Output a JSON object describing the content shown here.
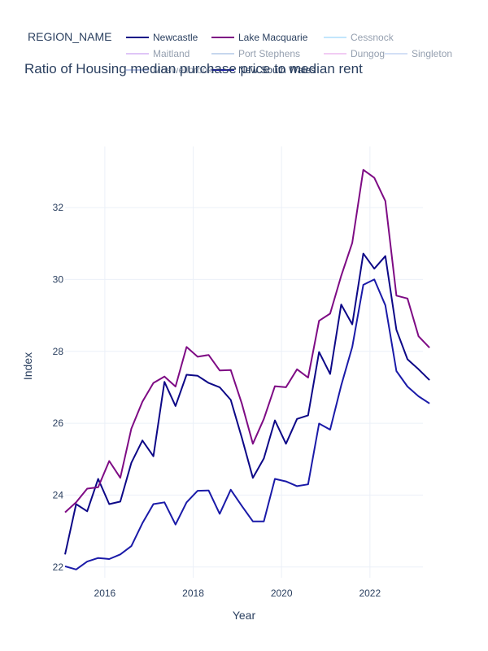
{
  "chart_data": {
    "type": "line",
    "title": "Ratio of Housing median purchase price to median rent",
    "xlabel": "Year",
    "ylabel": "Index",
    "xlim": [
      2015.1,
      2023.2
    ],
    "ylim": [
      21.7,
      33.7
    ],
    "x_ticks": [
      2016,
      2018,
      2020,
      2022
    ],
    "y_ticks": [
      22,
      24,
      26,
      28,
      30,
      32
    ],
    "grid": true,
    "legend": {
      "title": "REGION_NAME",
      "placement": "top",
      "entries": [
        {
          "name": "Newcastle",
          "color": "#0d0887",
          "visible": true
        },
        {
          "name": "Lake Macquarie",
          "color": "#7e0b84",
          "visible": true
        },
        {
          "name": "Cessnock",
          "color": "#87cefa",
          "visible": false
        },
        {
          "name": "Maitland",
          "color": "#c08cf0",
          "visible": false
        },
        {
          "name": "Port Stephens",
          "color": "#8fb1de",
          "visible": false
        },
        {
          "name": "Dungog",
          "color": "#e49be9",
          "visible": false
        },
        {
          "name": "Singleton",
          "color": "#a8c2ee",
          "visible": false
        },
        {
          "name": "Muswellbrook",
          "color": "#7a8fd4",
          "visible": false
        },
        {
          "name": "New South Wales",
          "color": "#1a1aa8",
          "visible": true
        }
      ]
    },
    "x": [
      2015.1,
      2015.35,
      2015.6,
      2015.85,
      2016.1,
      2016.35,
      2016.6,
      2016.85,
      2017.1,
      2017.35,
      2017.6,
      2017.85,
      2018.1,
      2018.35,
      2018.6,
      2018.85,
      2019.1,
      2019.35,
      2019.6,
      2019.85,
      2020.1,
      2020.35,
      2020.6,
      2020.85,
      2021.1,
      2021.35,
      2021.6,
      2021.85,
      2022.1,
      2022.35,
      2022.6,
      2022.85,
      2023.1,
      2023.35
    ],
    "series": [
      {
        "name": "Newcastle",
        "color": "#0d0887",
        "values": [
          22.35,
          23.75,
          23.55,
          24.45,
          23.75,
          23.82,
          24.9,
          25.52,
          25.08,
          27.15,
          26.48,
          27.35,
          27.32,
          27.12,
          27.0,
          26.65,
          25.6,
          24.48,
          25.02,
          26.08,
          25.43,
          26.12,
          26.22,
          27.98,
          27.37,
          29.3,
          28.75,
          30.72,
          30.3,
          30.65,
          28.6,
          27.78,
          27.5,
          27.2
        ]
      },
      {
        "name": "Lake Macquarie",
        "color": "#7e0b84",
        "values": [
          23.52,
          23.8,
          24.18,
          24.22,
          24.95,
          24.48,
          25.85,
          26.6,
          27.12,
          27.3,
          27.02,
          28.12,
          27.85,
          27.9,
          27.47,
          27.48,
          26.55,
          25.43,
          26.12,
          27.03,
          27.0,
          27.5,
          27.27,
          28.85,
          29.05,
          30.1,
          31.02,
          33.05,
          32.83,
          32.18,
          29.55,
          29.47,
          28.42,
          28.1
        ]
      },
      {
        "name": "New South Wales",
        "color": "#1a1aa8",
        "values": [
          22.02,
          21.93,
          22.15,
          22.25,
          22.22,
          22.35,
          22.58,
          23.22,
          23.75,
          23.8,
          23.18,
          23.8,
          24.12,
          24.13,
          23.48,
          24.15,
          23.7,
          23.27,
          23.27,
          24.45,
          24.38,
          24.25,
          24.3,
          25.99,
          25.82,
          27.05,
          28.12,
          29.85,
          30.0,
          29.28,
          27.45,
          27.02,
          26.75,
          26.55
        ]
      }
    ]
  }
}
